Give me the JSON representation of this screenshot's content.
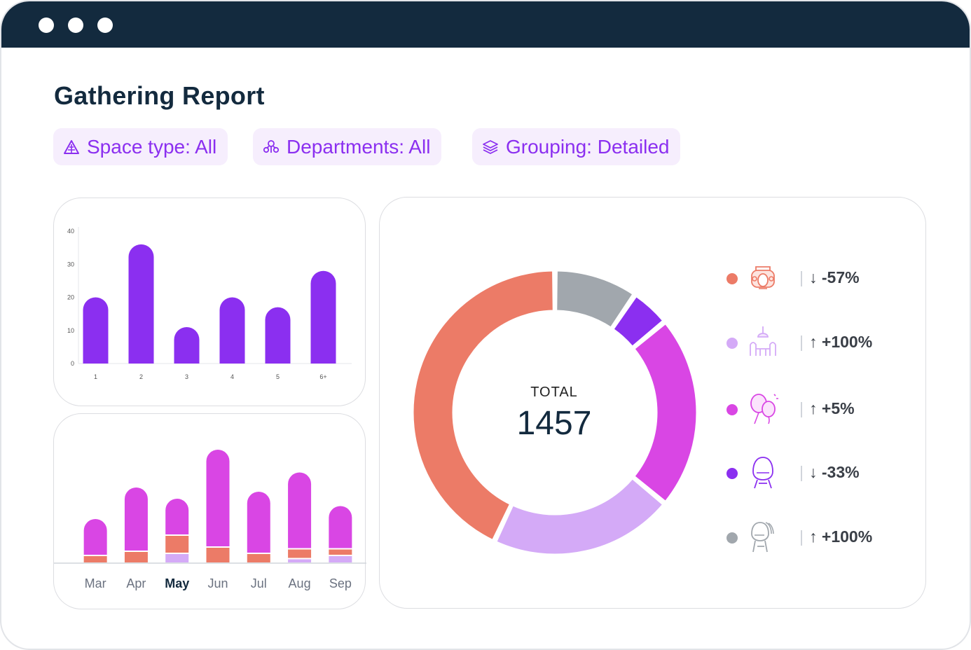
{
  "report": {
    "title": "Gathering Report"
  },
  "filters": [
    {
      "label": "Space type: All",
      "icon": "space-type-icon"
    },
    {
      "label": "Departments: All",
      "icon": "departments-icon"
    },
    {
      "label": "Grouping: Detailed",
      "icon": "layers-icon"
    }
  ],
  "colors": {
    "purple": "#8b2ff0",
    "magenta": "#d946e4",
    "lavender": "#d4aaf7",
    "coral": "#ec7b67",
    "gray": "#a1a7ad",
    "navy": "#132a3e"
  },
  "chart_data": [
    {
      "type": "bar",
      "categories": [
        "1",
        "2",
        "3",
        "4",
        "5",
        "6+"
      ],
      "values": [
        20,
        36,
        11,
        20,
        17,
        28
      ],
      "ylim": [
        0,
        40
      ],
      "yticks": [
        "0",
        "10",
        "20",
        "30",
        "40"
      ],
      "xlabel": "",
      "ylabel": ""
    },
    {
      "type": "bar",
      "stacked": true,
      "categories": [
        "Mar",
        "Apr",
        "May",
        "Jun",
        "Jul",
        "Aug",
        "Sep"
      ],
      "selected_category": "May",
      "series": [
        {
          "color": "#d4aaf7",
          "values": [
            0,
            0,
            8,
            0,
            0,
            3,
            6
          ]
        },
        {
          "color": "#ec7b67",
          "values": [
            6,
            10,
            16,
            14,
            8,
            8,
            5
          ]
        },
        {
          "color": "#d946e4",
          "values": [
            34,
            60,
            34,
            92,
            58,
            72,
            40
          ]
        }
      ]
    },
    {
      "type": "pie",
      "donut": true,
      "total_label": "TOTAL",
      "total": "1457",
      "slices": [
        {
          "color": "#a1a7ad",
          "value": 9.5,
          "icon": "stacked-chairs-icon",
          "delta": "↑ +100%"
        },
        {
          "color": "#8b2ff0",
          "value": 4.5,
          "icon": "egg-chair-icon",
          "delta": "↓ -33%"
        },
        {
          "color": "#d946e4",
          "value": 22,
          "icon": "balloons-icon",
          "delta": "↑ +5%"
        },
        {
          "color": "#d4aaf7",
          "value": 21,
          "icon": "dining-table-icon",
          "delta": "↑ +100%"
        },
        {
          "color": "#ec7b67",
          "value": 43,
          "icon": "meeting-room-icon",
          "delta": "↓ -57%"
        }
      ]
    }
  ]
}
